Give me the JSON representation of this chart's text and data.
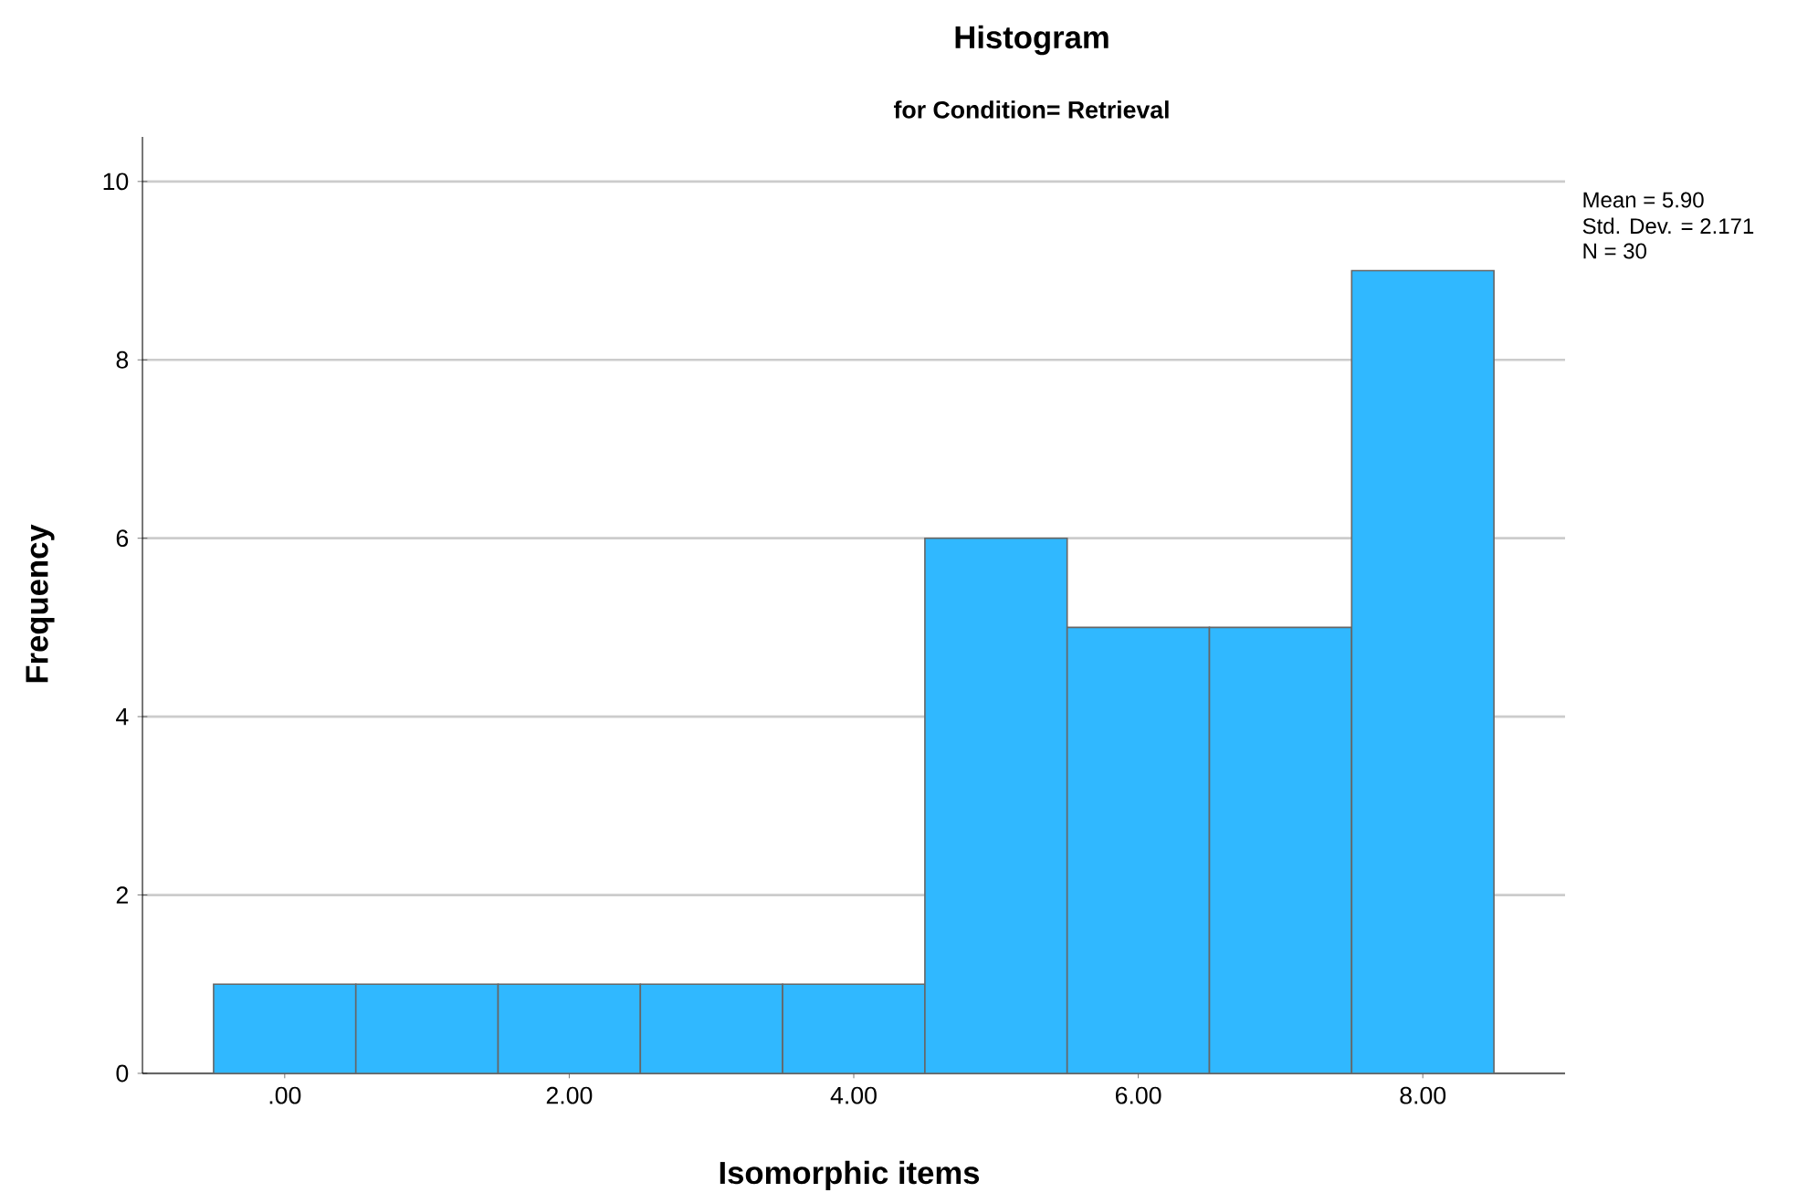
{
  "chart_data": {
    "type": "histogram",
    "title": "Histogram",
    "subtitle": "for Condition= Retrieval",
    "xlabel": "Isomorphic items",
    "ylabel": "Frequency",
    "bins": [
      -0.5,
      0.5,
      1.5,
      2.5,
      3.5,
      4.5,
      5.5,
      6.5,
      7.5,
      8.5
    ],
    "values": [
      1,
      1,
      1,
      1,
      1,
      6,
      5,
      5,
      9
    ],
    "color": "#30b8ff",
    "xlim": [
      -1,
      9
    ],
    "ylim": [
      0,
      10.5
    ],
    "xticks": [
      {
        "value": 0,
        "label": ".00"
      },
      {
        "value": 2,
        "label": "2.00"
      },
      {
        "value": 4,
        "label": "4.00"
      },
      {
        "value": 6,
        "label": "6.00"
      },
      {
        "value": 8,
        "label": "8.00"
      }
    ],
    "yticks": [
      0,
      2,
      4,
      6,
      8,
      10
    ],
    "grid": "y",
    "annotations": [
      "Mean = 5.90",
      "Std. Dev. = 2.171",
      "N = 30"
    ]
  }
}
